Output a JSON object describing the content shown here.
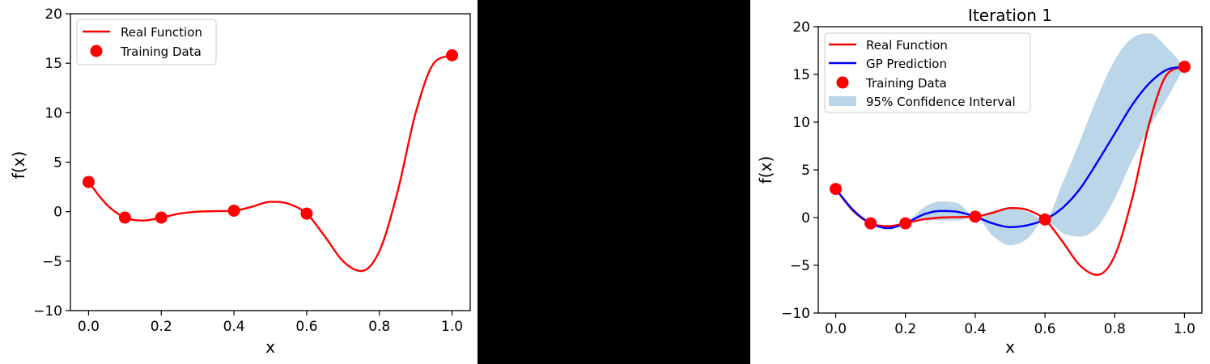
{
  "charts": [
    {
      "id": "left",
      "title": "",
      "xlabel": "x",
      "ylabel": "f(x)",
      "xlim": [
        -0.05,
        1.05
      ],
      "ylim": [
        -10,
        20
      ],
      "xticks": [
        "0.0",
        "0.2",
        "0.4",
        "0.6",
        "0.8",
        "1.0"
      ],
      "yticks": [
        "−10",
        "−5",
        "0",
        "5",
        "10",
        "15",
        "20"
      ],
      "legend": {
        "position": "top-left",
        "entries": [
          "Real Function",
          "Training Data"
        ]
      }
    },
    {
      "id": "right",
      "title": "Iteration 1",
      "xlabel": "x",
      "ylabel": "f(x)",
      "xlim": [
        -0.05,
        1.05
      ],
      "ylim": [
        -10,
        20
      ],
      "xticks": [
        "0.0",
        "0.2",
        "0.4",
        "0.6",
        "0.8",
        "1.0"
      ],
      "yticks": [
        "−10",
        "−5",
        "0",
        "5",
        "10",
        "15",
        "20"
      ],
      "legend": {
        "position": "top-left",
        "entries": [
          "Real Function",
          "GP Prediction",
          "Training Data",
          "95% Confidence Interval"
        ]
      }
    }
  ],
  "chart_data": [
    {
      "type": "line",
      "title": "",
      "xlabel": "x",
      "ylabel": "f(x)",
      "xlim": [
        -0.05,
        1.05
      ],
      "ylim": [
        -10,
        20
      ],
      "grid": false,
      "legend_position": "top-left",
      "series": [
        {
          "name": "Real Function",
          "kind": "line",
          "color": "#ff0000",
          "x": [
            0.0,
            0.05,
            0.1,
            0.15,
            0.2,
            0.25,
            0.3,
            0.35,
            0.4,
            0.45,
            0.5,
            0.55,
            0.6,
            0.65,
            0.7,
            0.75,
            0.8,
            0.85,
            0.9,
            0.95,
            1.0
          ],
          "y": [
            3.0,
            0.7,
            -0.6,
            -0.9,
            -0.6,
            -0.2,
            0.0,
            0.05,
            0.1,
            0.5,
            1.0,
            0.8,
            -0.2,
            -2.5,
            -5.0,
            -6.0,
            -4.0,
            2.0,
            10.0,
            15.0,
            15.8
          ]
        },
        {
          "name": "Training Data",
          "kind": "scatter",
          "color": "#ff0000",
          "x": [
            0.0,
            0.1,
            0.2,
            0.4,
            0.6,
            1.0
          ],
          "y": [
            3.0,
            -0.6,
            -0.6,
            0.1,
            -0.2,
            15.8
          ]
        }
      ]
    },
    {
      "type": "line",
      "title": "Iteration 1",
      "xlabel": "x",
      "ylabel": "f(x)",
      "xlim": [
        -0.05,
        1.05
      ],
      "ylim": [
        -10,
        20
      ],
      "grid": false,
      "legend_position": "top-left",
      "series": [
        {
          "name": "Real Function",
          "kind": "line",
          "color": "#ff0000",
          "x": [
            0.0,
            0.05,
            0.1,
            0.15,
            0.2,
            0.25,
            0.3,
            0.35,
            0.4,
            0.45,
            0.5,
            0.55,
            0.6,
            0.65,
            0.7,
            0.75,
            0.8,
            0.85,
            0.9,
            0.95,
            1.0
          ],
          "y": [
            3.0,
            0.7,
            -0.6,
            -0.9,
            -0.6,
            -0.2,
            0.0,
            0.05,
            0.1,
            0.5,
            1.0,
            0.8,
            -0.2,
            -2.5,
            -5.0,
            -6.0,
            -4.0,
            2.0,
            10.0,
            15.0,
            15.8
          ]
        },
        {
          "name": "GP Prediction",
          "kind": "line",
          "color": "#0000ff",
          "x": [
            0.0,
            0.05,
            0.1,
            0.15,
            0.2,
            0.25,
            0.3,
            0.35,
            0.4,
            0.45,
            0.5,
            0.55,
            0.6,
            0.65,
            0.7,
            0.75,
            0.8,
            0.85,
            0.9,
            0.95,
            1.0
          ],
          "y": [
            3.0,
            0.8,
            -0.6,
            -1.1,
            -0.6,
            0.3,
            0.7,
            0.6,
            0.1,
            -0.6,
            -1.0,
            -0.8,
            -0.2,
            1.0,
            3.0,
            5.8,
            8.8,
            11.8,
            14.1,
            15.5,
            15.8
          ]
        },
        {
          "name": "Training Data",
          "kind": "scatter",
          "color": "#ff0000",
          "x": [
            0.0,
            0.1,
            0.2,
            0.4,
            0.6,
            1.0
          ],
          "y": [
            3.0,
            -0.6,
            -0.6,
            0.1,
            -0.2,
            15.8
          ]
        },
        {
          "name": "95% Confidence Interval",
          "kind": "band",
          "color": "#1f77b4",
          "opacity": 0.3,
          "x": [
            0.0,
            0.05,
            0.1,
            0.15,
            0.2,
            0.25,
            0.3,
            0.35,
            0.4,
            0.45,
            0.5,
            0.55,
            0.6,
            0.65,
            0.7,
            0.75,
            0.8,
            0.85,
            0.9,
            0.95,
            1.0
          ],
          "lower": [
            3.0,
            0.7,
            -0.6,
            -1.3,
            -0.6,
            -0.3,
            -0.3,
            -0.3,
            0.1,
            -1.9,
            -2.9,
            -2.2,
            -0.2,
            -1.6,
            -2.0,
            -1.0,
            2.0,
            6.0,
            9.5,
            12.5,
            15.8
          ],
          "upper": [
            3.0,
            0.9,
            -0.6,
            -0.9,
            -0.6,
            1.0,
            1.7,
            1.5,
            0.1,
            0.7,
            0.9,
            0.6,
            -0.2,
            3.6,
            8.0,
            12.6,
            16.5,
            18.8,
            19.3,
            17.8,
            15.8
          ]
        }
      ]
    }
  ]
}
